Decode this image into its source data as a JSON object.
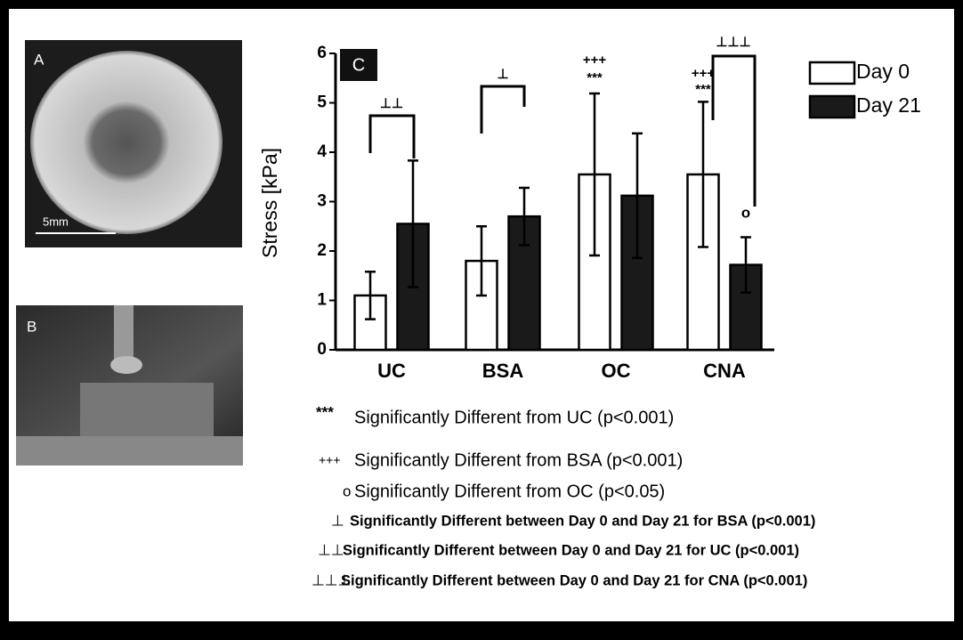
{
  "panels": {
    "a_label": "A",
    "scale_bar": "5mm",
    "b_label": "B"
  },
  "chart_data": {
    "type": "bar",
    "panel_label": "C",
    "y_label": "Stress [kPa]",
    "categories": [
      "UC",
      "BSA",
      "OC",
      "CNA"
    ],
    "series": [
      {
        "name": "Day 0",
        "color": "#ffffff",
        "values": [
          1.1,
          1.8,
          3.55,
          3.55
        ],
        "errors": [
          0.48,
          0.7,
          1.64,
          1.47
        ]
      },
      {
        "name": "Day 21",
        "color": "#1a1a1a",
        "values": [
          2.55,
          2.7,
          3.12,
          1.72
        ],
        "errors": [
          1.28,
          0.58,
          1.26,
          0.56
        ]
      }
    ],
    "ylim": [
      0,
      6
    ],
    "yticks": [
      0,
      1,
      2,
      3,
      4,
      5,
      6
    ],
    "annotations": [
      "⊥⊥",
      "⊥",
      "⊥⊥⊥",
      "+++",
      "***",
      "+++",
      "***",
      "o"
    ],
    "notes": [
      {
        "symbol": "***",
        "text": "Significantly Different from UC (p<0.001)"
      },
      {
        "symbol": "+++",
        "text": "Significantly Different from BSA (p<0.001)"
      },
      {
        "symbol": "o",
        "text": "Significantly Different from OC (p<0.05)"
      },
      {
        "symbol": "⊥",
        "text": "Significantly Different between Day 0 and Day 21 for BSA (p<0.001)"
      },
      {
        "symbol": "⊥⊥",
        "text": "Significantly Different between Day 0 and Day 21 for UC (p<0.001)"
      },
      {
        "symbol": "⊥⊥⊥",
        "text": "Significantly Different between Day 0 and Day 21 for CNA (p<0.001)"
      }
    ]
  }
}
